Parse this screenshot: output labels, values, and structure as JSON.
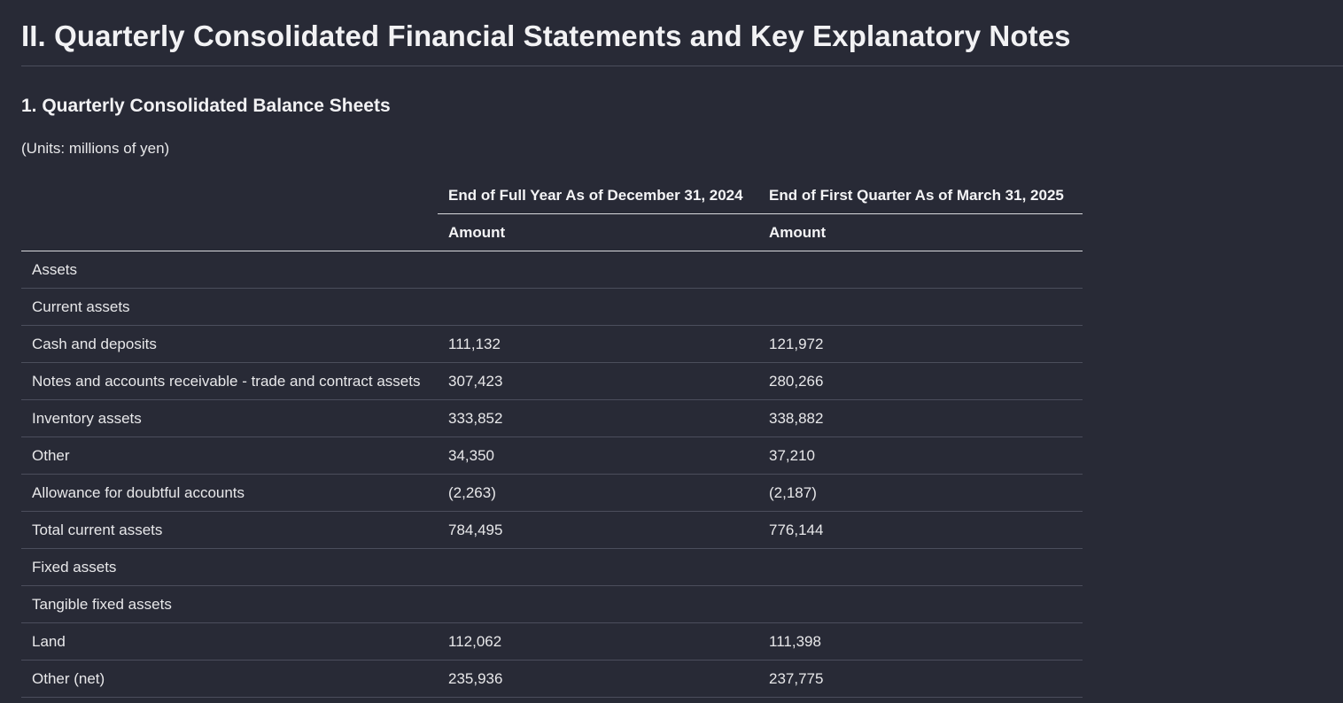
{
  "document": {
    "title": "II. Quarterly Consolidated Financial Statements and Key Explanatory Notes",
    "section_title": "1. Quarterly Consolidated Balance Sheets",
    "units": "(Units: millions of yen)"
  },
  "table": {
    "columns": [
      {
        "period": "End of Full Year As of December 31, 2024",
        "subheader": "Amount"
      },
      {
        "period": "End of First Quarter As of March 31, 2025",
        "subheader": "Amount"
      }
    ],
    "rows": [
      {
        "label": "Assets",
        "fy2024": "",
        "q1_2025": ""
      },
      {
        "label": "Current assets",
        "fy2024": "",
        "q1_2025": ""
      },
      {
        "label": "Cash and deposits",
        "fy2024": "111,132",
        "q1_2025": "121,972"
      },
      {
        "label": "Notes and accounts receivable - trade and contract assets",
        "fy2024": "307,423",
        "q1_2025": "280,266"
      },
      {
        "label": "Inventory assets",
        "fy2024": "333,852",
        "q1_2025": "338,882"
      },
      {
        "label": "Other",
        "fy2024": "34,350",
        "q1_2025": "37,210"
      },
      {
        "label": "Allowance for doubtful accounts",
        "fy2024": "(2,263)",
        "q1_2025": "(2,187)"
      },
      {
        "label": "Total current assets",
        "fy2024": "784,495",
        "q1_2025": "776,144"
      },
      {
        "label": "Fixed assets",
        "fy2024": "",
        "q1_2025": ""
      },
      {
        "label": "Tangible fixed assets",
        "fy2024": "",
        "q1_2025": ""
      },
      {
        "label": "Land",
        "fy2024": "112,062",
        "q1_2025": "111,398"
      },
      {
        "label": "Other (net)",
        "fy2024": "235,936",
        "q1_2025": "237,775"
      }
    ]
  },
  "colors": {
    "background": "#282a36",
    "text": "#e8e8ea",
    "row_divider": "#4b4e5c",
    "header_rule": "#d8d8dc"
  }
}
